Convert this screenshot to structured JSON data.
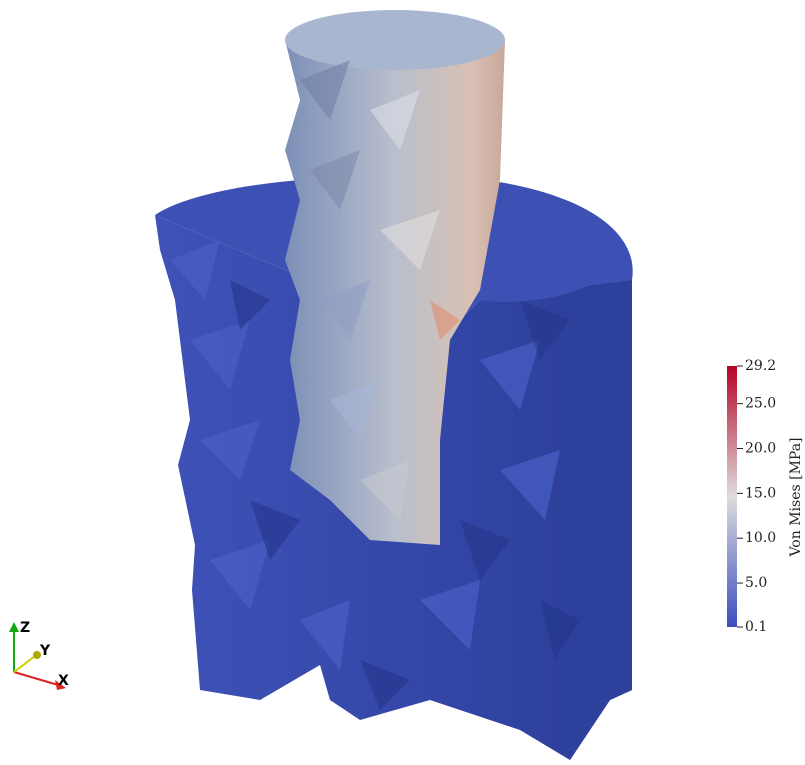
{
  "colorbar": {
    "title": "Von Mises [MPa]",
    "range": [
      0.1,
      29.2
    ],
    "ticks": [
      {
        "value": 29.2,
        "label": "29.2"
      },
      {
        "value": 25,
        "label": "25.0"
      },
      {
        "value": 20,
        "label": "20.0"
      },
      {
        "value": 15,
        "label": "15.0"
      },
      {
        "value": 10,
        "label": "10.0"
      },
      {
        "value": 5,
        "label": "5.0"
      },
      {
        "value": 0.1,
        "label": "0.1"
      }
    ]
  },
  "orientation_axes": {
    "z": "Z",
    "y": "Y",
    "x": "X"
  }
}
